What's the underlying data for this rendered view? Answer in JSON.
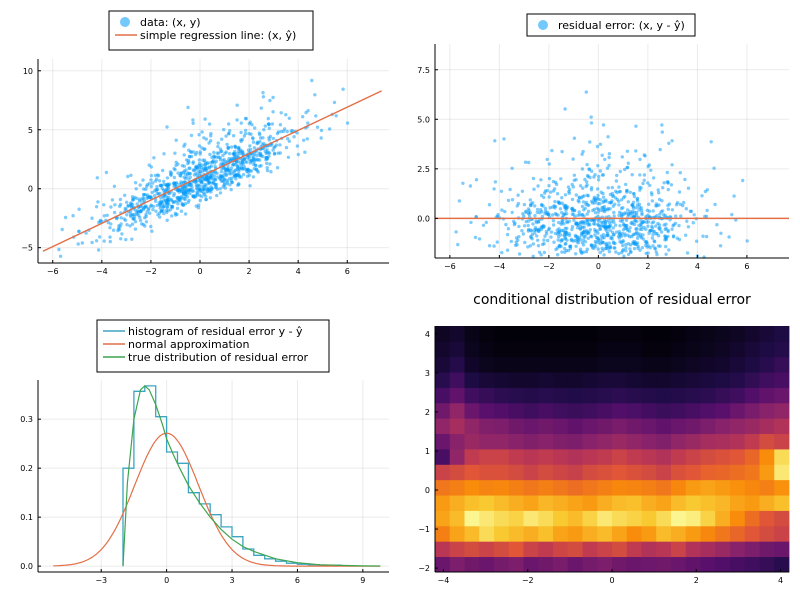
{
  "chart_data": [
    {
      "type": "scatter",
      "panel": "top-left",
      "title": "",
      "xlabel": "",
      "ylabel": "",
      "xlim": [
        -6.6,
        7.7
      ],
      "ylim": [
        -6.3,
        11.0
      ],
      "xticks": [
        -6,
        -4,
        -2,
        0,
        2,
        4,
        6
      ],
      "xtick_labels": [
        "−6",
        "−4",
        "−2",
        "0",
        "2",
        "4",
        "6"
      ],
      "yticks": [
        -5,
        0,
        5,
        10
      ],
      "ytick_labels": [
        "−5",
        "0",
        "5",
        "10"
      ],
      "grid": true,
      "legend_position": "top-center",
      "series": [
        {
          "name": "data: (x, y)",
          "kind": "scatter",
          "color": "#009AFA",
          "n_points": 1000,
          "approx_relation": "y ≈ 0.99 + 0.95·x + noise"
        },
        {
          "name": "simple regression line: (x, ŷ)",
          "kind": "line",
          "color": "#E36F47",
          "x": [
            -6.4,
            7.4
          ],
          "y": [
            -5.3,
            8.3
          ]
        }
      ]
    },
    {
      "type": "scatter",
      "panel": "top-right",
      "title": "",
      "xlabel": "",
      "ylabel": "",
      "xlim": [
        -6.6,
        7.7
      ],
      "ylim": [
        -2.0,
        8.8
      ],
      "xticks": [
        -6,
        -4,
        -2,
        0,
        2,
        4,
        6
      ],
      "xtick_labels": [
        "−6",
        "−4",
        "−2",
        "0",
        "2",
        "4",
        "6"
      ],
      "yticks": [
        0,
        2.5,
        5,
        7.5
      ],
      "ytick_labels": [
        "0.0",
        "2.5",
        "5.0",
        "7.5"
      ],
      "grid": true,
      "legend_position": "top-center",
      "series": [
        {
          "name": "residual error: (x, y - ŷ)",
          "kind": "scatter",
          "color": "#009AFA",
          "n_points": 1000
        },
        {
          "name": "",
          "kind": "hline",
          "color": "#E36F47",
          "y": 0
        }
      ]
    },
    {
      "type": "line",
      "panel": "bottom-left",
      "title": "",
      "xlabel": "",
      "ylabel": "",
      "xlim": [
        -5.9,
        10.2
      ],
      "ylim": [
        -0.012,
        0.38
      ],
      "xticks": [
        -3,
        0,
        3,
        6,
        9
      ],
      "xtick_labels": [
        "−3",
        "0",
        "3",
        "6",
        "9"
      ],
      "yticks": [
        0,
        0.1,
        0.2,
        0.3
      ],
      "ytick_labels": [
        "0.0",
        "0.1",
        "0.2",
        "0.3"
      ],
      "grid": true,
      "legend_position": "top-center",
      "series": [
        {
          "name": "histogram of residual error y - ŷ",
          "kind": "step",
          "color": "#3DA4C2",
          "bin_edges": [
            -2,
            -1.5,
            -1,
            -0.5,
            0,
            0.5,
            1,
            1.5,
            2,
            2.5,
            3,
            3.5,
            4,
            4.5,
            5,
            5.5,
            6,
            6.5,
            7,
            7.5,
            8,
            8.5
          ],
          "density": [
            0.2,
            0.357,
            0.368,
            0.305,
            0.233,
            0.21,
            0.15,
            0.127,
            0.105,
            0.08,
            0.06,
            0.035,
            0.022,
            0.015,
            0.01,
            0.006,
            0.004,
            0.003,
            0.002,
            0.002,
            0.001
          ]
        },
        {
          "name": "normal approximation",
          "kind": "line",
          "color": "#E36F47",
          "mean": 0.0,
          "sd": 1.47,
          "x_range": [
            -5.2,
            9.8
          ]
        },
        {
          "name": "true distribution of residual error",
          "kind": "line",
          "color": "#3EA44E",
          "x": [
            -2.0,
            -1.8,
            -1.5,
            -1.2,
            -1.0,
            -0.8,
            -0.5,
            -0.2,
            0.0,
            0.3,
            0.6,
            1.0,
            1.5,
            2.0,
            2.5,
            3.0,
            3.5,
            4.0,
            5.0,
            6.0,
            7.0,
            8.0,
            9.0,
            9.8
          ],
          "y": [
            0.0,
            0.17,
            0.3,
            0.36,
            0.368,
            0.36,
            0.33,
            0.29,
            0.26,
            0.228,
            0.2,
            0.165,
            0.13,
            0.1,
            0.075,
            0.055,
            0.04,
            0.03,
            0.015,
            0.007,
            0.003,
            0.0015,
            0.0005,
            0.0002
          ]
        }
      ]
    },
    {
      "type": "heatmap",
      "panel": "bottom-right",
      "title": "conditional distribution of residual error",
      "xlabel": "",
      "ylabel": "",
      "xlim": [
        -4.2,
        4.2
      ],
      "ylim": [
        -2.1,
        4.2
      ],
      "xticks": [
        -4,
        -2,
        0,
        2,
        4
      ],
      "xtick_labels": [
        "−4",
        "−2",
        "0",
        "2",
        "4"
      ],
      "yticks": [
        -2,
        -1,
        0,
        1,
        2,
        3,
        4
      ],
      "ytick_labels": [
        "−2",
        "−1",
        "0",
        "1",
        "2",
        "3",
        "4"
      ],
      "grid": false,
      "colormap": "inferno",
      "n_cols": 24,
      "rows_bottom_to_top": [
        [
          0.3,
          0.35,
          0.32,
          0.3,
          0.33,
          0.35,
          0.3,
          0.32,
          0.34,
          0.3,
          0.33,
          0.35,
          0.32,
          0.3,
          0.31,
          0.32,
          0.3,
          0.28,
          0.26,
          0.24,
          0.22,
          0.2,
          0.18,
          0.15
        ],
        [
          0.5,
          0.55,
          0.58,
          0.55,
          0.58,
          0.62,
          0.55,
          0.52,
          0.56,
          0.58,
          0.52,
          0.55,
          0.58,
          0.52,
          0.48,
          0.5,
          0.55,
          0.48,
          0.45,
          0.42,
          0.38,
          0.35,
          0.32,
          0.3
        ],
        [
          0.72,
          0.8,
          0.85,
          0.92,
          0.88,
          0.85,
          0.82,
          0.86,
          0.8,
          0.78,
          0.82,
          0.85,
          0.8,
          0.75,
          0.78,
          0.85,
          0.82,
          0.78,
          0.74,
          0.7,
          0.66,
          0.62,
          0.58,
          0.55
        ],
        [
          0.8,
          0.85,
          0.98,
          0.95,
          0.92,
          0.9,
          0.95,
          0.92,
          0.88,
          0.85,
          0.9,
          0.95,
          0.92,
          0.9,
          0.88,
          0.92,
          0.98,
          0.96,
          0.9,
          0.82,
          0.75,
          0.68,
          0.62,
          0.58
        ],
        [
          0.78,
          0.82,
          0.86,
          0.88,
          0.85,
          0.82,
          0.8,
          0.84,
          0.82,
          0.8,
          0.78,
          0.82,
          0.85,
          0.86,
          0.82,
          0.8,
          0.85,
          0.88,
          0.86,
          0.84,
          0.8,
          0.78,
          0.82,
          0.86
        ],
        [
          0.7,
          0.72,
          0.75,
          0.73,
          0.74,
          0.72,
          0.7,
          0.72,
          0.7,
          0.68,
          0.7,
          0.72,
          0.74,
          0.73,
          0.72,
          0.7,
          0.74,
          0.78,
          0.8,
          0.78,
          0.76,
          0.74,
          0.72,
          0.76
        ],
        [
          0.55,
          0.58,
          0.62,
          0.6,
          0.6,
          0.58,
          0.55,
          0.58,
          0.56,
          0.54,
          0.58,
          0.6,
          0.62,
          0.6,
          0.58,
          0.55,
          0.6,
          0.62,
          0.65,
          0.66,
          0.68,
          0.7,
          0.78,
          0.95
        ],
        [
          0.22,
          0.4,
          0.52,
          0.55,
          0.55,
          0.52,
          0.5,
          0.52,
          0.5,
          0.48,
          0.5,
          0.52,
          0.55,
          0.52,
          0.5,
          0.48,
          0.52,
          0.55,
          0.58,
          0.6,
          0.62,
          0.66,
          0.75,
          0.92
        ],
        [
          0.3,
          0.38,
          0.42,
          0.4,
          0.4,
          0.38,
          0.36,
          0.38,
          0.36,
          0.35,
          0.38,
          0.4,
          0.42,
          0.4,
          0.38,
          0.36,
          0.4,
          0.42,
          0.45,
          0.46,
          0.48,
          0.52,
          0.58,
          0.55
        ],
        [
          0.4,
          0.45,
          0.4,
          0.36,
          0.35,
          0.32,
          0.3,
          0.32,
          0.3,
          0.28,
          0.3,
          0.32,
          0.34,
          0.32,
          0.3,
          0.28,
          0.3,
          0.32,
          0.35,
          0.38,
          0.4,
          0.42,
          0.45,
          0.48
        ],
        [
          0.32,
          0.4,
          0.3,
          0.26,
          0.24,
          0.22,
          0.2,
          0.22,
          0.2,
          0.19,
          0.2,
          0.22,
          0.24,
          0.23,
          0.21,
          0.19,
          0.2,
          0.22,
          0.24,
          0.26,
          0.3,
          0.34,
          0.38,
          0.4
        ],
        [
          0.22,
          0.28,
          0.2,
          0.18,
          0.16,
          0.15,
          0.14,
          0.15,
          0.14,
          0.13,
          0.14,
          0.15,
          0.16,
          0.15,
          0.14,
          0.13,
          0.14,
          0.15,
          0.16,
          0.18,
          0.2,
          0.24,
          0.28,
          0.3
        ],
        [
          0.15,
          0.2,
          0.12,
          0.1,
          0.09,
          0.08,
          0.08,
          0.09,
          0.08,
          0.08,
          0.09,
          0.1,
          0.1,
          0.09,
          0.08,
          0.08,
          0.09,
          0.1,
          0.11,
          0.12,
          0.14,
          0.17,
          0.2,
          0.22
        ],
        [
          0.1,
          0.14,
          0.07,
          0.05,
          0.04,
          0.04,
          0.04,
          0.04,
          0.04,
          0.04,
          0.04,
          0.05,
          0.05,
          0.05,
          0.04,
          0.04,
          0.05,
          0.06,
          0.07,
          0.08,
          0.1,
          0.12,
          0.15,
          0.18
        ],
        [
          0.08,
          0.1,
          0.05,
          0.03,
          0.02,
          0.02,
          0.02,
          0.02,
          0.02,
          0.02,
          0.02,
          0.03,
          0.03,
          0.03,
          0.02,
          0.02,
          0.03,
          0.04,
          0.05,
          0.06,
          0.08,
          0.1,
          0.12,
          0.14
        ],
        [
          0.06,
          0.08,
          0.04,
          0.02,
          0.01,
          0.01,
          0.01,
          0.01,
          0.01,
          0.01,
          0.01,
          0.02,
          0.02,
          0.02,
          0.01,
          0.01,
          0.02,
          0.03,
          0.04,
          0.05,
          0.06,
          0.08,
          0.1,
          0.12
        ]
      ]
    }
  ]
}
